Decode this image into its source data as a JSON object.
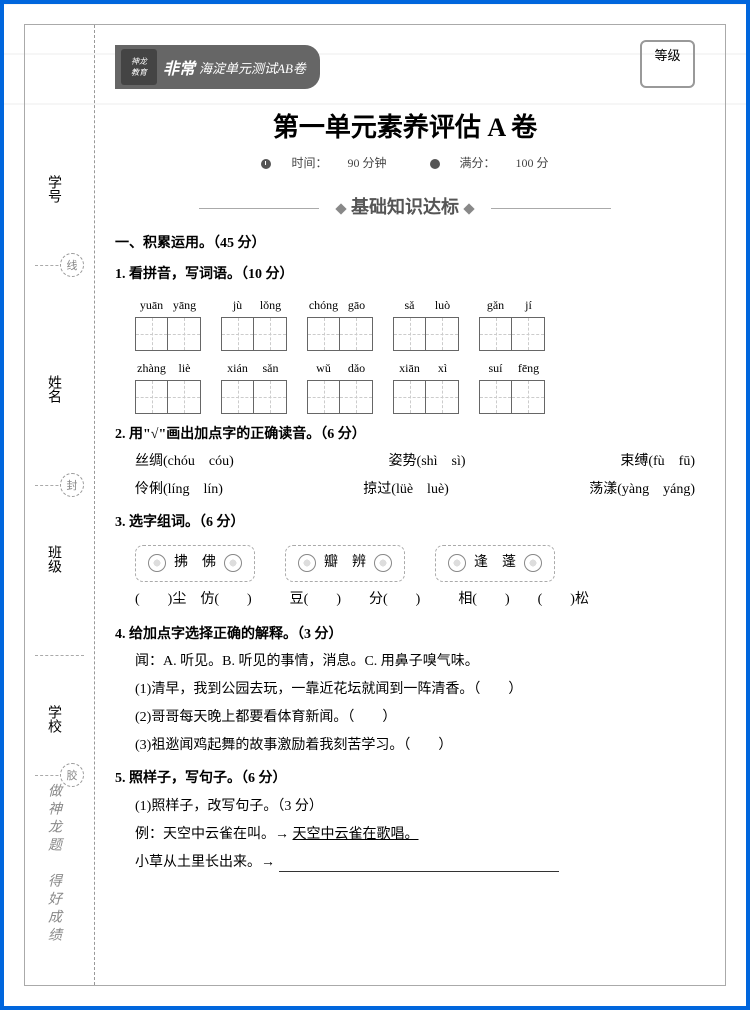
{
  "header": {
    "logo_top": "神龙",
    "logo_bottom": "教育",
    "brand": "非常",
    "series": "海淀单元测试AB卷",
    "grade_label": "等级",
    "title": "第一单元素养评估 A 卷",
    "time_label": "时间：",
    "time_value": "90 分钟",
    "score_label": "满分：",
    "score_value": "100 分"
  },
  "sidebar": {
    "xuehao": "学号",
    "xingming": "姓名",
    "banji": "班级",
    "xuexiao": "学校",
    "slogan": "做神龙题　得好成绩",
    "b1": "线",
    "b2": "封",
    "b3": "胶"
  },
  "section": {
    "heading": "基础知识达标"
  },
  "q0": {
    "title": "一、积累运用。（45 分）"
  },
  "q1": {
    "title": "1. 看拼音，写词语。（10 分）",
    "row1": [
      [
        "yuān",
        "yāng"
      ],
      [
        "jù",
        "lǒng"
      ],
      [
        "chóng",
        "gāo"
      ],
      [
        "sǎ",
        "luò"
      ],
      [
        "gǎn",
        "jí"
      ]
    ],
    "row2": [
      [
        "zhàng",
        "liè"
      ],
      [
        "xián",
        "sǎn"
      ],
      [
        "wǔ",
        "dǎo"
      ],
      [
        "xiān",
        "xì"
      ],
      [
        "suí",
        "fēng"
      ]
    ]
  },
  "q2": {
    "title": "2. 用\"√\"画出加点字的正确读音。（6 分）",
    "items": [
      [
        "丝绸(chóu　cóu)",
        "姿势(shì　sì)",
        "束缚(fù　fū)"
      ],
      [
        "伶俐(líng　lín)",
        "掠过(lüè　luè)",
        "荡漾(yàng　yáng)"
      ]
    ]
  },
  "q3": {
    "title": "3. 选字组词。（6 分）",
    "groups": [
      [
        "拂",
        "佛"
      ],
      [
        "瓣",
        "辨"
      ],
      [
        "逢",
        "蓬"
      ]
    ],
    "fills": [
      "(　　)尘　仿(　　)",
      "豆(　　)　　分(　　)",
      "相(　　)　　(　　)松"
    ]
  },
  "q4": {
    "title": "4. 给加点字选择正确的解释。（3 分）",
    "def": "闻：A. 听见。B. 听见的事情，消息。C. 用鼻子嗅气味。",
    "lines": [
      "(1)清早，我到公园去玩，一靠近花坛就闻到一阵清香。（　　）",
      "(2)哥哥每天晚上都要看体育新闻。（　　）",
      "(3)祖逖闻鸡起舞的故事激励着我刻苦学习。（　　）"
    ]
  },
  "q5": {
    "title": "5. 照样子，写句子。（6 分）",
    "sub": "(1)照样子，改写句子。（3 分）",
    "ex_l": "例：天空中云雀在叫。→",
    "ex_r": "天空中云雀在歌唱。",
    "line": "小草从土里长出来。→"
  }
}
